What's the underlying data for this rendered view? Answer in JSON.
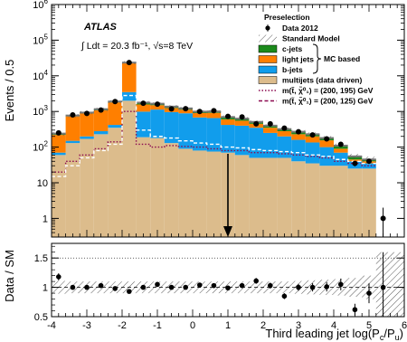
{
  "chart_data": {
    "type": "bar",
    "subtype": "stacked-histogram-with-ratio-panel",
    "experiment_label": "ATLAS",
    "luminosity_text": "∫ Ldt = 20.3 fb⁻¹, √s=8 TeV",
    "region_label": "Preselection",
    "ylabel_main": "Events / 0.5",
    "ylabel_ratio": "Data / SM",
    "xlabel": "Third leading jet log(P_c/P_u)",
    "y_scale": "log",
    "ylim_main": [
      0.3,
      1000000
    ],
    "ylim_ratio": [
      0.5,
      1.75
    ],
    "xlim": [
      -4,
      6
    ],
    "y_tick_labels_main": [
      "1",
      "10",
      "10²",
      "10³",
      "10⁴",
      "10⁵",
      "10⁶"
    ],
    "y_tick_values_main": [
      1,
      10,
      100,
      1000,
      10000,
      100000,
      1000000
    ],
    "y_tick_labels_ratio": [
      "0.5",
      "1",
      "1.5"
    ],
    "y_tick_values_ratio": [
      0.5,
      1,
      1.5
    ],
    "x_tick_labels": [
      "-4",
      "-3",
      "-2",
      "-1",
      "0",
      "1",
      "2",
      "3",
      "4",
      "5",
      "6"
    ],
    "x_tick_values": [
      -4,
      -3,
      -2,
      -1,
      0,
      1,
      2,
      3,
      4,
      5,
      6
    ],
    "bin_edges": [
      -4.0,
      -3.6,
      -3.2,
      -2.8,
      -2.4,
      -2.0,
      -1.6,
      -1.2,
      -0.8,
      -0.4,
      0.0,
      0.4,
      0.8,
      1.2,
      1.6,
      2.0,
      2.4,
      2.8,
      3.2,
      3.6,
      4.0,
      4.4,
      4.8,
      5.2,
      5.6,
      6.0
    ],
    "bin_centers": [
      -3.8,
      -3.4,
      -3.0,
      -2.6,
      -2.2,
      -1.8,
      -1.4,
      -1.0,
      -0.6,
      -0.2,
      0.2,
      0.6,
      1.0,
      1.4,
      1.8,
      2.2,
      2.6,
      3.0,
      3.4,
      3.8,
      4.2,
      4.6,
      5.0,
      5.4,
      5.8
    ],
    "series": [
      {
        "name": "multijets (data driven)",
        "color": "#dcbc8c",
        "values": [
          60,
          130,
          170,
          230,
          350,
          2000,
          190,
          180,
          130,
          90,
          80,
          75,
          70,
          60,
          50,
          50,
          50,
          40,
          35,
          30,
          30,
          25,
          25,
          0,
          0
        ]
      },
      {
        "name": "b-jets",
        "color": "#119dec",
        "values": [
          10,
          20,
          30,
          50,
          70,
          1500,
          800,
          950,
          830,
          800,
          600,
          580,
          350,
          340,
          300,
          200,
          150,
          120,
          100,
          70,
          40,
          15,
          10,
          0,
          0
        ]
      },
      {
        "name": "light jets",
        "color": "#ff7f00",
        "values": [
          150,
          580,
          680,
          800,
          1380,
          19500,
          580,
          370,
          290,
          230,
          220,
          260,
          180,
          150,
          100,
          100,
          80,
          70,
          65,
          55,
          20,
          5,
          5,
          0,
          0
        ]
      },
      {
        "name": "c-jets",
        "color": "#1b8a1b",
        "values": [
          20,
          40,
          50,
          80,
          100,
          500,
          200,
          150,
          120,
          100,
          90,
          85,
          100,
          80,
          60,
          50,
          40,
          40,
          30,
          25,
          20,
          10,
          5,
          0,
          0
        ]
      }
    ],
    "data_2012": {
      "name": "Data 2012",
      "values": [
        250,
        800,
        880,
        1100,
        1900,
        23500,
        1700,
        1600,
        1180,
        1200,
        1000,
        1050,
        730,
        700,
        450,
        450,
        340,
        270,
        220,
        170,
        120,
        35,
        40,
        1,
        0
      ],
      "errors": [
        16,
        28,
        30,
        33,
        44,
        150,
        41,
        40,
        34,
        35,
        32,
        32,
        27,
        26,
        21,
        21,
        18,
        16,
        15,
        13,
        11,
        6,
        6,
        1,
        0
      ]
    },
    "signals": [
      {
        "name": "m(t̃, χ̃⁰₁) = (200, 195) GeV",
        "color": "#8b0a50",
        "style": "dotted",
        "values": [
          20,
          40,
          60,
          90,
          140,
          1000,
          120,
          100,
          110,
          105,
          100,
          90,
          80,
          80,
          70,
          70,
          65,
          60,
          55,
          50,
          40,
          35,
          30,
          0,
          0
        ]
      },
      {
        "name": "m(t̃, χ̃⁰₁) = (200, 125) GeV",
        "color": "#ffffff",
        "style": "dashed",
        "values": [
          15,
          30,
          50,
          80,
          120,
          2800,
          300,
          200,
          180,
          150,
          130,
          120,
          100,
          95,
          85,
          80,
          75,
          70,
          60,
          55,
          45,
          40,
          35,
          0,
          0
        ]
      }
    ],
    "ratio": [
      1.18,
      1.0,
      1.0,
      1.03,
      0.98,
      0.93,
      1.0,
      1.05,
      1.0,
      1.0,
      1.04,
      1.03,
      0.99,
      1.03,
      1.11,
      1.03,
      0.85,
      1.0,
      1.0,
      1.01,
      1.05,
      0.62,
      0.9,
      1.0,
      0
    ],
    "ratio_errors": [
      0.06,
      0.04,
      0.04,
      0.04,
      0.03,
      0.01,
      0.03,
      0.03,
      0.03,
      0.03,
      0.03,
      0.03,
      0.04,
      0.04,
      0.05,
      0.05,
      0.05,
      0.06,
      0.07,
      0.08,
      0.1,
      0.1,
      0.17,
      0.6,
      0
    ],
    "systematic_band": [
      0.11,
      0.1,
      0.1,
      0.1,
      0.1,
      0.1,
      0.1,
      0.1,
      0.1,
      0.1,
      0.1,
      0.1,
      0.1,
      0.1,
      0.1,
      0.1,
      0.1,
      0.11,
      0.12,
      0.13,
      0.14,
      0.16,
      0.2,
      0.6,
      0.6
    ],
    "cut_arrow_x": 1.0,
    "legend": {
      "position": "top-right",
      "entries": [
        {
          "label": "Data 2012",
          "kind": "marker"
        },
        {
          "label": "Standard Model",
          "kind": "hatch"
        },
        {
          "label": "c-jets",
          "kind": "fill",
          "color": "#1b8a1b"
        },
        {
          "label": "light jets",
          "kind": "fill",
          "color": "#ff7f00"
        },
        {
          "label": "b-jets",
          "kind": "fill",
          "color": "#119dec"
        },
        {
          "label": "multijets (data driven)",
          "kind": "fill",
          "color": "#dcbc8c"
        },
        {
          "label": "m(t̃, χ̃⁰₁) = (200, 195) GeV",
          "kind": "line",
          "color": "#8b0a50",
          "style": "dotted"
        },
        {
          "label": "m(t̃, χ̃⁰₁) = (200, 125) GeV",
          "kind": "line",
          "color": "#ffffff",
          "style": "dashed"
        }
      ],
      "brace_label": "MC based"
    }
  }
}
